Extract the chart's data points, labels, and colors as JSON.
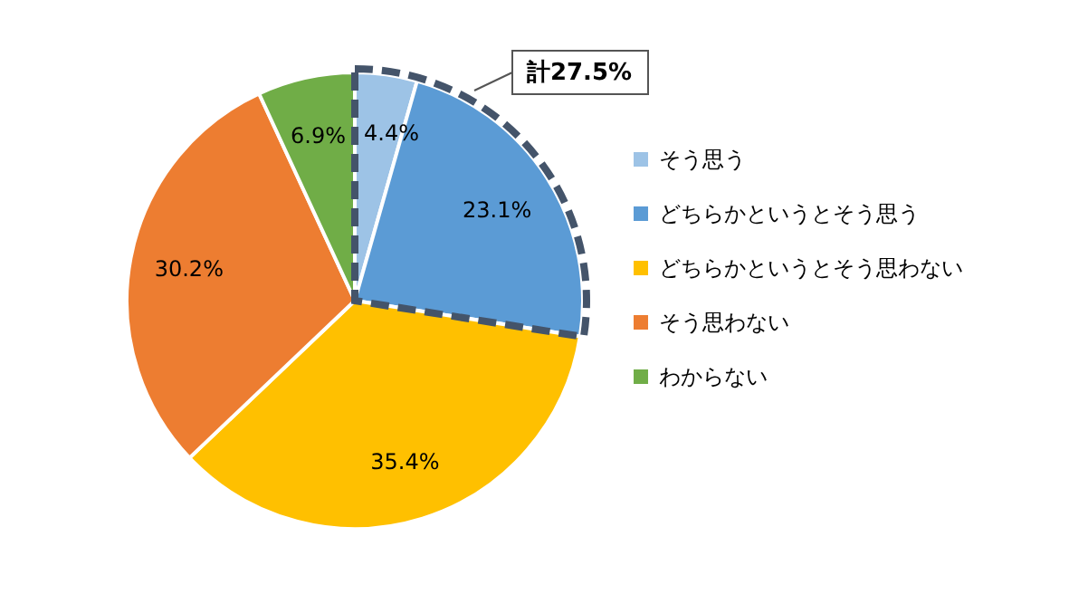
{
  "chart_data": {
    "type": "pie",
    "categories": [
      "そう思う",
      "どちらかというとそう思う",
      "どちらかというとそう思わない",
      "そう思わない",
      "わからない"
    ],
    "values": [
      4.4,
      23.1,
      35.4,
      30.2,
      6.9
    ],
    "colors": [
      "#9dc3e6",
      "#5b9bd5",
      "#ffc000",
      "#ed7d31",
      "#70ad47"
    ],
    "value_labels": [
      "4.4%",
      "23.1%",
      "35.4%",
      "30.2%",
      "6.9%"
    ],
    "annotations": [
      "計27.5%"
    ],
    "legend": "right"
  }
}
